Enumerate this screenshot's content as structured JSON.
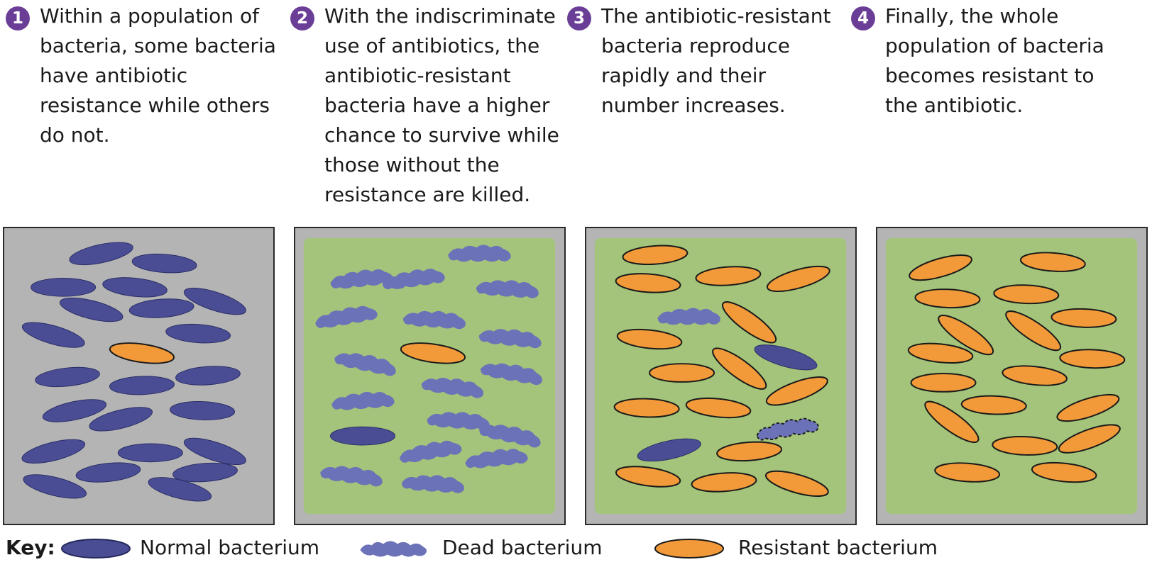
{
  "steps": [
    {
      "number": "1",
      "text": "Within a population of bacteria, some bacteria have antibiotic resistance while others do not."
    },
    {
      "number": "2",
      "text": "With the indiscriminate use of antibiotics, the antibiotic-resistant bacteria have a higher chance to survive while those without the resistance are killed."
    },
    {
      "number": "3",
      "text": "The antibiotic-resistant bacteria reproduce rapidly and their number increases."
    },
    {
      "number": "4",
      "text": "Finally, the whole population of bacteria becomes resistant to the antibiotic."
    }
  ],
  "key": {
    "title": "Key:",
    "normal_label": "Normal bacterium",
    "dead_label": "Dead bacterium",
    "resistant_label": "Resistant bacterium"
  },
  "panels": [
    {
      "antibiotic": false,
      "normal": 24,
      "dead": 0,
      "resistant": 1
    },
    {
      "antibiotic": true,
      "normal": 1,
      "dead": 18,
      "resistant": 1
    },
    {
      "antibiotic": true,
      "normal": 2,
      "dead": 2,
      "resistant": 17
    },
    {
      "antibiotic": true,
      "normal": 0,
      "dead": 0,
      "resistant": 19
    }
  ],
  "colors": {
    "normal": "#4a4d94",
    "resistant": "#f29a3a",
    "medium": "#a3c47a",
    "background": "#b4b4b4"
  }
}
